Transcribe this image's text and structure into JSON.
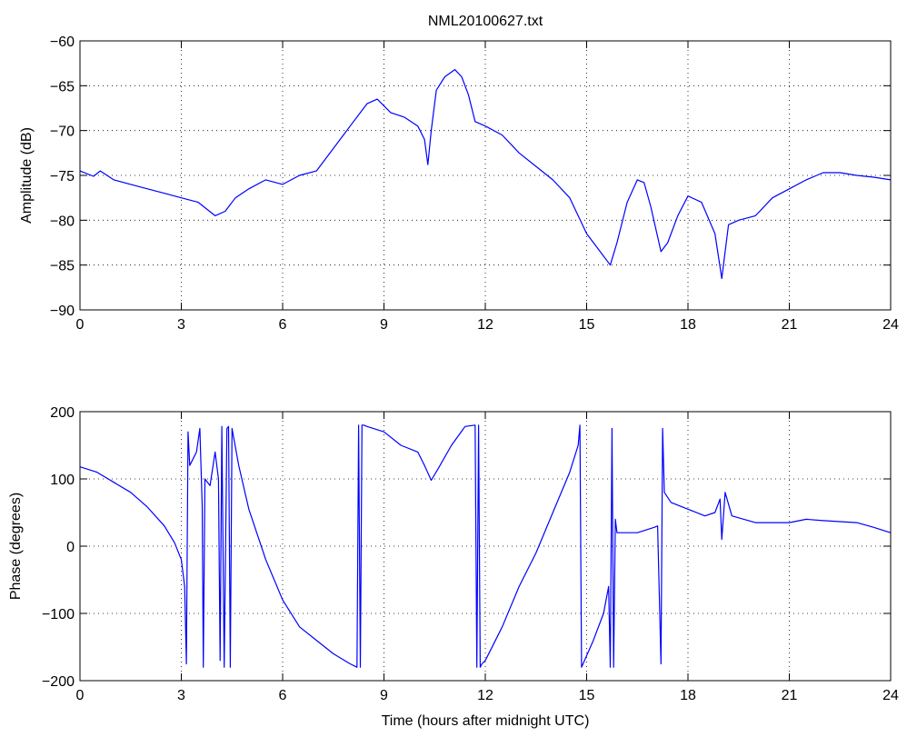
{
  "chart_data": [
    {
      "type": "line",
      "title": "NML20100627.txt",
      "xlabel": "",
      "ylabel": "Amplitude (dB)",
      "xlim": [
        0,
        24
      ],
      "ylim": [
        -90,
        -60
      ],
      "xticks": [
        "0",
        "3",
        "6",
        "9",
        "12",
        "15",
        "18",
        "21",
        "24"
      ],
      "yticks": [
        "−60",
        "−65",
        "−70",
        "−75",
        "−80",
        "−85",
        "−90"
      ],
      "grid": true,
      "color": "#0000ff",
      "series": [
        {
          "x": [
            0,
            0.4,
            0.6,
            1.0,
            1.5,
            2.0,
            2.5,
            3.0,
            3.5,
            4.0,
            4.3,
            4.6,
            5.0,
            5.5,
            6.0,
            6.5,
            7.0,
            7.5,
            8.0,
            8.5,
            8.8,
            9.2,
            9.6,
            10.0,
            10.2,
            10.3,
            10.4,
            10.55,
            10.8,
            11.1,
            11.3,
            11.5,
            11.7,
            12.0,
            12.5,
            13.0,
            13.5,
            14.0,
            14.5,
            15.0,
            15.4,
            15.7,
            15.9,
            16.2,
            16.5,
            16.7,
            16.9,
            17.2,
            17.4,
            17.7,
            18.0,
            18.4,
            18.8,
            19.0,
            19.2,
            19.5,
            20.0,
            20.5,
            21.0,
            21.5,
            22.0,
            22.5,
            23.0,
            23.5,
            24.0
          ],
          "y": [
            -74.5,
            -75.1,
            -74.5,
            -75.5,
            -76.0,
            -76.5,
            -77.0,
            -77.5,
            -78.0,
            -79.5,
            -79.0,
            -77.5,
            -76.5,
            -75.5,
            -76.0,
            -75.0,
            -74.5,
            -72.0,
            -69.5,
            -67.0,
            -66.5,
            -68.0,
            -68.5,
            -69.5,
            -71.0,
            -73.8,
            -70.0,
            -65.5,
            -64.0,
            -63.2,
            -64.0,
            -66.0,
            -69.0,
            -69.5,
            -70.5,
            -72.5,
            -74.0,
            -75.5,
            -77.5,
            -81.5,
            -83.5,
            -85.0,
            -82.5,
            -78.0,
            -75.5,
            -75.8,
            -78.5,
            -83.5,
            -82.5,
            -79.5,
            -77.3,
            -78.0,
            -81.5,
            -86.5,
            -80.5,
            -80.0,
            -79.5,
            -77.5,
            -76.5,
            -75.5,
            -74.7,
            -74.7,
            -75.0,
            -75.2,
            -75.5
          ]
        }
      ]
    },
    {
      "type": "line",
      "title": "",
      "xlabel": "Time (hours after midnight UTC)",
      "ylabel": "Phase (degrees)",
      "xlim": [
        0,
        24
      ],
      "ylim": [
        -200,
        200
      ],
      "xticks": [
        "0",
        "3",
        "6",
        "9",
        "12",
        "15",
        "18",
        "21",
        "24"
      ],
      "yticks": [
        "200",
        "100",
        "0",
        "−100",
        "−200"
      ],
      "grid": true,
      "color": "#0000ff",
      "series": [
        {
          "x": [
            0,
            0.5,
            1.0,
            1.5,
            2.0,
            2.5,
            2.8,
            3.0,
            3.1,
            3.15,
            3.2,
            3.25,
            3.35,
            3.45,
            3.55,
            3.62,
            3.65,
            3.7,
            3.85,
            4.0,
            4.1,
            4.15,
            4.2,
            4.27,
            4.35,
            4.4,
            4.45,
            4.5,
            4.7,
            5.0,
            5.5,
            6.0,
            6.5,
            7.0,
            7.5,
            8.0,
            8.2,
            8.25,
            8.3,
            8.35,
            8.4,
            8.5,
            9.0,
            9.5,
            10.0,
            10.2,
            10.4,
            10.6,
            11.0,
            11.4,
            11.7,
            11.75,
            11.8,
            11.85,
            11.9,
            12.0,
            12.5,
            13.0,
            13.5,
            14.0,
            14.5,
            14.75,
            14.8,
            14.85,
            15.2,
            15.5,
            15.65,
            15.7,
            15.75,
            15.8,
            15.85,
            15.9,
            16.5,
            17.0,
            17.1,
            17.2,
            17.25,
            17.3,
            17.5,
            18.0,
            18.5,
            18.8,
            18.95,
            19.0,
            19.1,
            19.3,
            20.0,
            21.0,
            21.5,
            22.0,
            23.0,
            23.5,
            24.0
          ],
          "y": [
            118,
            110,
            95,
            80,
            58,
            30,
            5,
            -20,
            -60,
            -175,
            170,
            120,
            130,
            140,
            175,
            60,
            -180,
            100,
            90,
            140,
            100,
            -170,
            178,
            -180,
            175,
            178,
            -180,
            175,
            120,
            55,
            -20,
            -80,
            -120,
            -140,
            -160,
            -175,
            -180,
            180,
            -180,
            180,
            180,
            178,
            170,
            150,
            140,
            120,
            98,
            115,
            150,
            178,
            180,
            -180,
            180,
            -180,
            -175,
            -170,
            -120,
            -60,
            -10,
            50,
            110,
            150,
            180,
            -180,
            -140,
            -100,
            -60,
            -180,
            175,
            -180,
            40,
            20,
            20,
            28,
            30,
            -175,
            175,
            80,
            65,
            55,
            45,
            50,
            70,
            10,
            80,
            45,
            35,
            35,
            40,
            38,
            35,
            28,
            20
          ]
        }
      ]
    }
  ]
}
